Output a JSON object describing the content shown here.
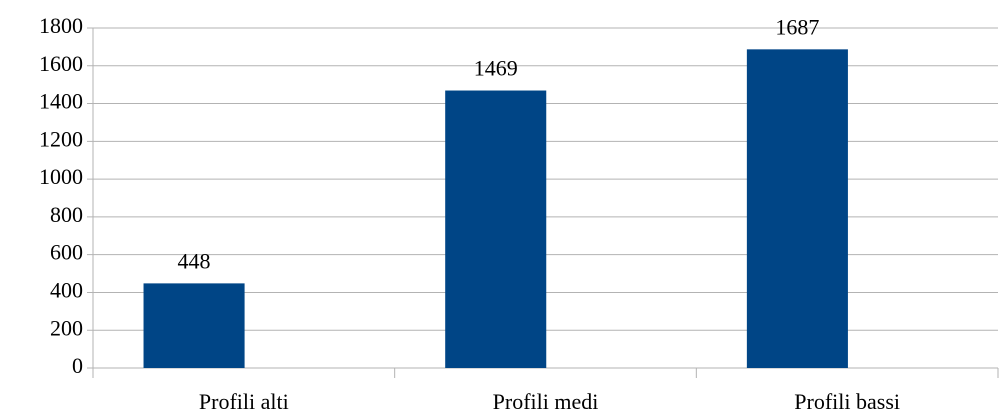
{
  "chart_data": {
    "type": "bar",
    "categories": [
      "Profili alti",
      "Profili medi",
      "Profili bassi"
    ],
    "values": [
      448,
      1469,
      1687
    ],
    "color": "#004586",
    "ylim": [
      0,
      1800
    ],
    "yticks": [
      0,
      200,
      400,
      600,
      800,
      1000,
      1200,
      1400,
      1600,
      1800
    ],
    "grid": true
  }
}
